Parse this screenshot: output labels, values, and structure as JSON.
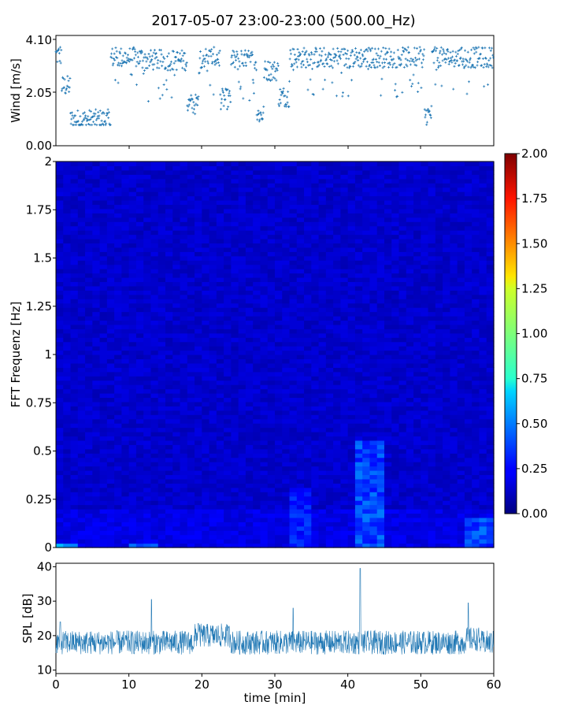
{
  "title": "2017-05-07 23:00-23:00 (500.00_Hz)",
  "colors": {
    "series": "#1f77b4",
    "axis": "#000000",
    "background": "#ffffff"
  },
  "chart_data": [
    {
      "id": "wind",
      "type": "scatter",
      "ylabel": "Wind [m/s]",
      "xlabel": "",
      "xlim": [
        0,
        60
      ],
      "ylim": [
        0.0,
        4.1
      ],
      "yticks": [
        "0.00",
        "2.05",
        "4.10"
      ],
      "marker": "+",
      "series_color": "#1f77b4",
      "shape_segments": [
        {
          "t0": 0,
          "t1": 0.8,
          "level": 3.5,
          "note": "high"
        },
        {
          "t0": 0.8,
          "t1": 2.0,
          "level": 2.3
        },
        {
          "t0": 2.0,
          "t1": 7.5,
          "level": 1.0
        },
        {
          "t0": 7.5,
          "t1": 12.0,
          "level": 3.4
        },
        {
          "t0": 12.0,
          "t1": 18.0,
          "level": 3.3
        },
        {
          "t0": 18.0,
          "t1": 19.5,
          "level": 1.6
        },
        {
          "t0": 19.5,
          "t1": 22.5,
          "level": 3.4
        },
        {
          "t0": 22.5,
          "t1": 24.0,
          "level": 1.8
        },
        {
          "t0": 24.0,
          "t1": 27.5,
          "level": 3.3
        },
        {
          "t0": 27.5,
          "t1": 28.5,
          "level": 1.2
        },
        {
          "t0": 28.5,
          "t1": 30.5,
          "level": 2.9
        },
        {
          "t0": 30.5,
          "t1": 32.0,
          "level": 1.9
        },
        {
          "t0": 32.0,
          "t1": 50.5,
          "level": 3.4
        },
        {
          "t0": 50.5,
          "t1": 51.5,
          "level": 1.2
        },
        {
          "t0": 51.5,
          "t1": 60,
          "level": 3.4
        }
      ]
    },
    {
      "id": "spectrogram",
      "type": "heatmap",
      "ylabel": "FFT Frequenz [Hz]",
      "xlabel": "",
      "xlim": [
        0,
        60
      ],
      "ylim": [
        0,
        2
      ],
      "yticks": [
        "0",
        "0.25",
        "0.5",
        "0.75",
        "1",
        "1.25",
        "1.5",
        "1.75",
        "2"
      ],
      "colormap": "jet",
      "clim": [
        0.0,
        2.0
      ],
      "colorbar_ticks": [
        "0.00",
        "0.25",
        "0.50",
        "0.75",
        "1.00",
        "1.25",
        "1.50",
        "1.75",
        "2.00"
      ],
      "base_level": 0.15,
      "hotspots": [
        {
          "t0": 41.5,
          "t1": 44.5,
          "f0": 0.0,
          "f1": 0.55,
          "level": 0.45
        },
        {
          "t0": 32.0,
          "t1": 34.5,
          "f0": 0.0,
          "f1": 0.3,
          "level": 0.35
        },
        {
          "t0": 56.5,
          "t1": 60.0,
          "f0": 0.0,
          "f1": 0.15,
          "level": 0.45
        },
        {
          "t0": 10.5,
          "t1": 13.5,
          "f0": 0.0,
          "f1": 0.03,
          "level": 0.6
        },
        {
          "t0": 0.0,
          "t1": 3.0,
          "f0": 0.0,
          "f1": 0.03,
          "level": 0.6
        }
      ]
    },
    {
      "id": "spl",
      "type": "line",
      "ylabel": "SPL [dB]",
      "xlabel": "time [min]",
      "xlim": [
        0,
        60
      ],
      "ylim": [
        9,
        41
      ],
      "yticks": [
        "10",
        "20",
        "30",
        "40"
      ],
      "xticks": [
        "0",
        "10",
        "20",
        "30",
        "40",
        "50",
        "60"
      ],
      "series_color": "#1f77b4",
      "baseline_db": 18,
      "spikes": [
        {
          "t": 41.7,
          "db": 39.5
        },
        {
          "t": 13.1,
          "db": 30.5
        },
        {
          "t": 56.5,
          "db": 29.5
        },
        {
          "t": 32.5,
          "db": 28.0
        },
        {
          "t": 19.5,
          "db": 23.5
        },
        {
          "t": 0.6,
          "db": 24.0
        }
      ]
    }
  ]
}
